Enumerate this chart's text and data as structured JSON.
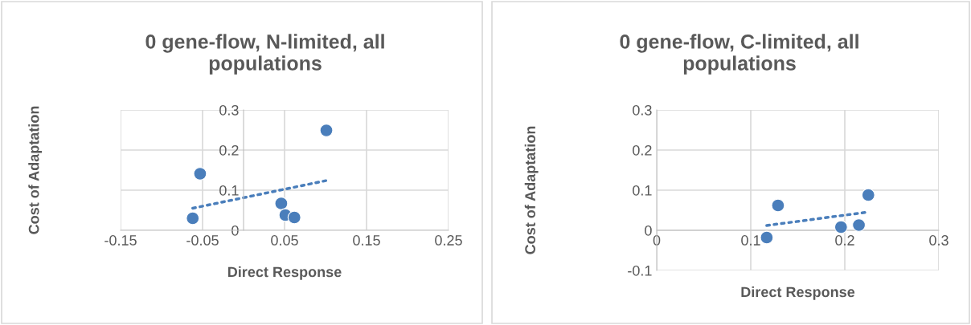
{
  "chart_data": [
    {
      "type": "scatter",
      "title": "0 gene-flow, N-limited, all populations",
      "xlabel": "Direct Response",
      "ylabel": "Cost of Adaptation",
      "series": [
        {
          "color": "#4a7ebb",
          "marker": "circle",
          "x": [
            -0.062,
            -0.053,
            0.046,
            0.051,
            0.062,
            0.101
          ],
          "values": [
            0.03,
            0.141,
            0.067,
            0.038,
            0.032,
            0.249
          ]
        },
        {
          "type": "line",
          "color": "#4a7ebb",
          "marker": "none",
          "line_style": "dotted",
          "x": [
            -0.062,
            0.101
          ],
          "values": [
            0.055,
            0.124
          ]
        }
      ],
      "xlim": [
        -0.15,
        0.25
      ],
      "xticks": [
        -0.15,
        -0.05,
        0.05,
        0.15,
        0.25
      ],
      "ylim": [
        0,
        0.3
      ],
      "yticks": [
        0,
        0.1,
        0.2,
        0.3
      ],
      "grid": true
    },
    {
      "type": "scatter",
      "title": "0 gene-flow, C-limited, all populations",
      "xlabel": "Direct Response",
      "ylabel": "Cost of Adaptation",
      "series": [
        {
          "color": "#4a7ebb",
          "marker": "circle",
          "x": [
            0.117,
            0.129,
            0.196,
            0.215,
            0.225
          ],
          "values": [
            -0.018,
            0.062,
            0.008,
            0.013,
            0.088
          ]
        },
        {
          "type": "line",
          "color": "#4a7ebb",
          "marker": "none",
          "line_style": "dotted",
          "x": [
            0.117,
            0.223
          ],
          "values": [
            0.012,
            0.045
          ]
        }
      ],
      "xlim": [
        0,
        0.3
      ],
      "xticks": [
        0,
        0.1,
        0.2,
        0.3
      ],
      "ylim": [
        -0.1,
        0.3
      ],
      "yticks": [
        -0.1,
        0,
        0.1,
        0.2,
        0.3
      ],
      "grid": true
    }
  ]
}
